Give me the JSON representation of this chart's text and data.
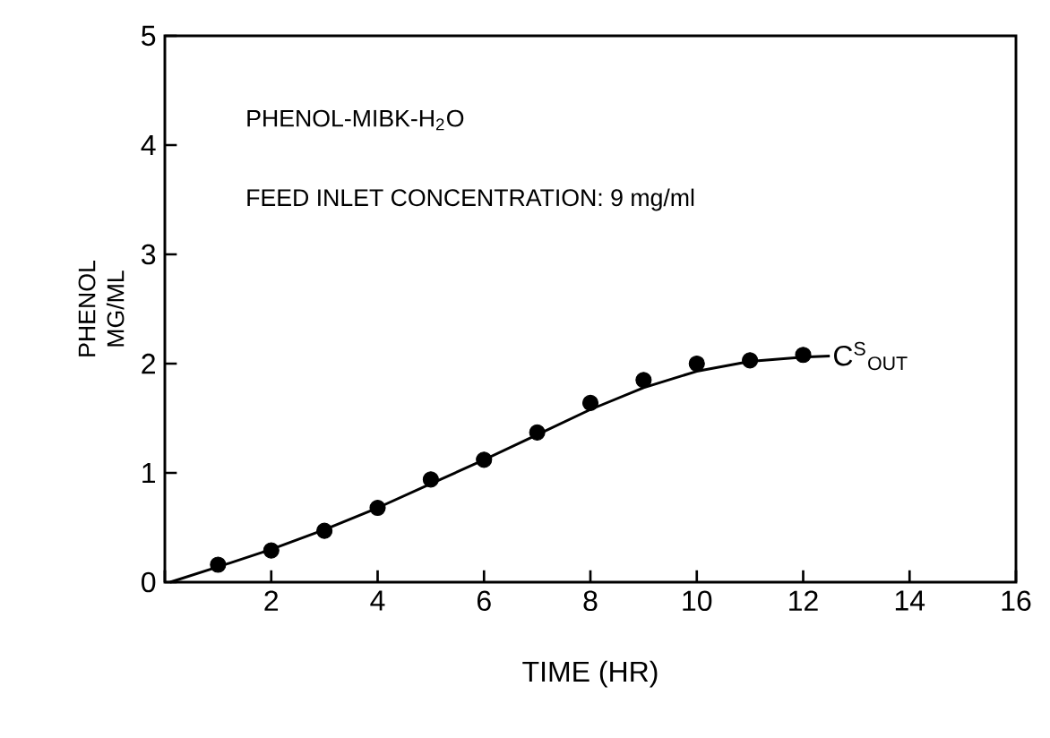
{
  "chart_data": {
    "type": "scatter",
    "xlabel": "TIME (HR)",
    "ylabel": "PHENOL MG/ML",
    "xlim": [
      0,
      16
    ],
    "ylim": [
      0,
      5
    ],
    "xticks": [
      {
        "value": 0,
        "label": null
      },
      2,
      4,
      6,
      8,
      10,
      12,
      14,
      16
    ],
    "yticks": [
      0,
      1,
      2,
      3,
      4,
      5
    ],
    "grid": false,
    "annotations": [
      "PHENOL-MIBK-H$_{2}$O",
      "FEED INLET CONCENTRATION: 9 mg/ml"
    ],
    "series": [
      {
        "marker": "circle",
        "color": "#000000",
        "x": [
          1,
          2,
          3,
          4,
          5,
          6,
          7,
          8,
          9,
          10,
          11,
          12
        ],
        "values": [
          0.16,
          0.29,
          0.47,
          0.68,
          0.94,
          1.12,
          1.37,
          1.64,
          1.85,
          2.0,
          2.03,
          2.08
        ]
      },
      {
        "type": "line",
        "name": "C$^{S}$$_{OUT}$",
        "marker": "none",
        "line_style": "solid",
        "color": "#000000",
        "x": [
          0.1,
          1,
          2,
          3,
          4,
          5,
          6,
          7,
          8,
          9,
          10,
          11,
          12,
          12.5
        ],
        "values": [
          0,
          0.14,
          0.3,
          0.48,
          0.68,
          0.9,
          1.12,
          1.35,
          1.58,
          1.78,
          1.93,
          2.02,
          2.06,
          2.07
        ]
      }
    ]
  }
}
